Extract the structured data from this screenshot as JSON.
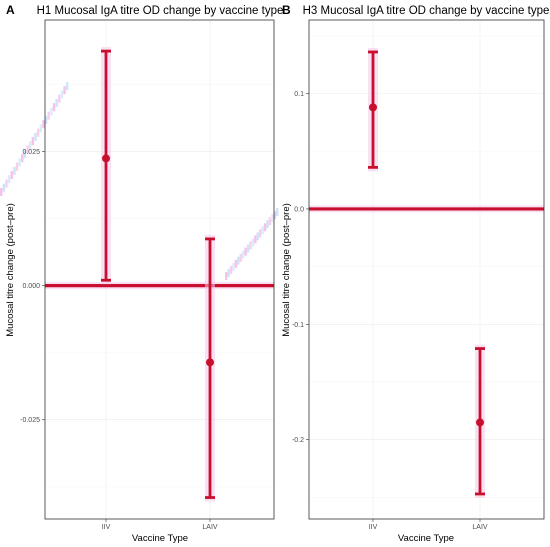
{
  "chart_data": [
    {
      "panel_letter": "A",
      "type": "errorbar",
      "title": "H1 Mucosal IgA titre OD change by vaccine type",
      "xlabel": "Vaccine Type",
      "ylabel": "Mucosal titre change (post–pre)",
      "categories": [
        "IIV",
        "LAIV"
      ],
      "points": [
        {
          "category": "IIV",
          "mean": 0.0237,
          "lower": 0.001,
          "upper": 0.0437
        },
        {
          "category": "LAIV",
          "mean": -0.0143,
          "lower": -0.0395,
          "upper": 0.0087
        }
      ],
      "reference_y": 0,
      "yticks": [
        "-0.025",
        "0.000",
        "0.025"
      ],
      "ytick_values": [
        -0.025,
        0.0,
        0.025
      ],
      "ylim": [
        -0.0435,
        0.0495
      ],
      "grid": true,
      "colors": {
        "errorbar": "#c8102e",
        "reference_line": "#c8102e",
        "glow": "#f5c6ea"
      }
    },
    {
      "panel_letter": "B",
      "type": "errorbar",
      "title": "H3 Mucosal IgA titre OD change by vaccine type",
      "xlabel": "Vaccine Type",
      "ylabel": "Mucosal titre change (post–pre)",
      "categories": [
        "IIV",
        "LAIV"
      ],
      "points": [
        {
          "category": "IIV",
          "mean": 0.088,
          "lower": 0.036,
          "upper": 0.136
        },
        {
          "category": "LAIV",
          "mean": -0.185,
          "lower": -0.247,
          "upper": -0.121
        }
      ],
      "reference_y": 0,
      "yticks": [
        "-0.2",
        "-0.1",
        "0.0",
        "0.1"
      ],
      "ytick_values": [
        -0.2,
        -0.1,
        0.0,
        0.1
      ],
      "ylim": [
        -0.2687,
        0.1637
      ],
      "grid": true,
      "colors": {
        "errorbar": "#c8102e",
        "reference_line": "#c8102e",
        "glow": "#f5c6ea"
      }
    }
  ]
}
